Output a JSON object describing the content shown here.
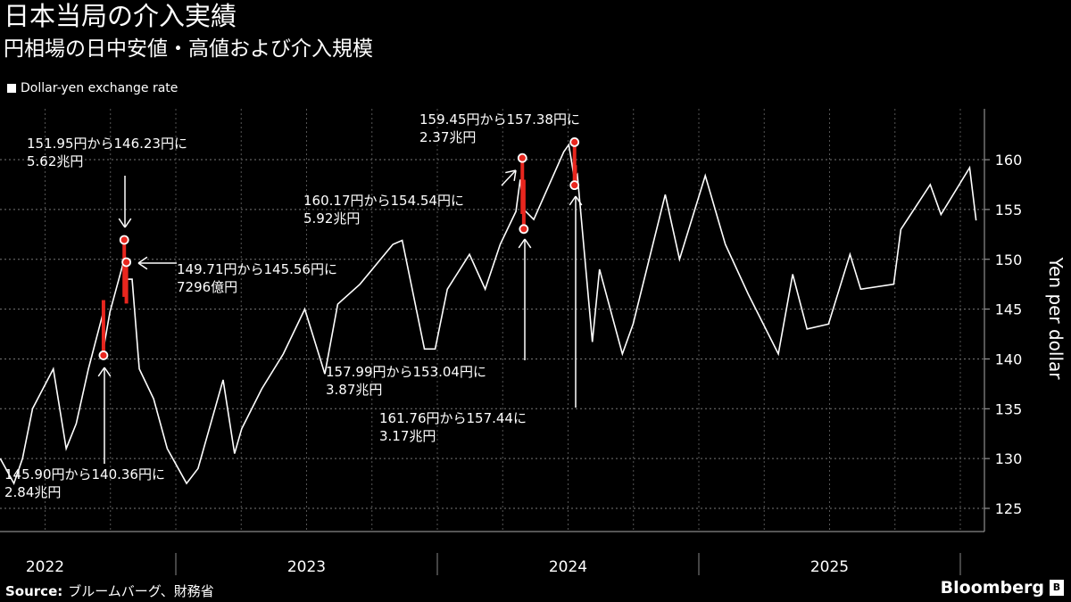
{
  "title": "日本当局の介入実績",
  "subtitle": "円相場の日中安値・高値および介入規模",
  "legend": "Dollar-yen exchange rate",
  "source_label": "Source:",
  "source_text": "ブルームバーグ、財務省",
  "logo": "Bloomberg",
  "colors": {
    "line": "#ffffff",
    "intervention": "#e8261e",
    "background": "#000000"
  },
  "chart_data": {
    "type": "line",
    "title": "日本当局の介入実績",
    "ylabel": "Yen per dollar",
    "ylim": [
      122,
      165
    ],
    "yticks": [
      125,
      130,
      135,
      140,
      145,
      150,
      155,
      160
    ],
    "xticks": [
      "2022",
      "2023",
      "2024",
      "2025"
    ],
    "grid": true,
    "legend_position": "top-left",
    "series": [
      {
        "name": "Dollar-yen exchange rate",
        "points": [
          [
            "2022-05-01",
            130
          ],
          [
            "2022-05-20",
            127.5
          ],
          [
            "2022-06-01",
            130
          ],
          [
            "2022-06-15",
            135
          ],
          [
            "2022-07-14",
            139
          ],
          [
            "2022-08-01",
            131
          ],
          [
            "2022-08-15",
            133.5
          ],
          [
            "2022-09-01",
            139
          ],
          [
            "2022-09-21",
            144.5
          ],
          [
            "2022-09-22",
            141
          ],
          [
            "2022-10-01",
            144.7
          ],
          [
            "2022-10-21",
            150
          ],
          [
            "2022-10-24",
            148
          ],
          [
            "2022-11-01",
            148
          ],
          [
            "2022-11-11",
            139
          ],
          [
            "2022-12-01",
            136
          ],
          [
            "2022-12-20",
            131
          ],
          [
            "2023-01-16",
            127.5
          ],
          [
            "2023-02-01",
            129
          ],
          [
            "2023-03-08",
            137.9
          ],
          [
            "2023-03-24",
            130.5
          ],
          [
            "2023-04-03",
            133
          ],
          [
            "2023-05-01",
            137
          ],
          [
            "2023-05-31",
            140.5
          ],
          [
            "2023-06-30",
            145
          ],
          [
            "2023-07-28",
            138.5
          ],
          [
            "2023-08-15",
            145.5
          ],
          [
            "2023-09-15",
            147.5
          ],
          [
            "2023-10-31",
            151.5
          ],
          [
            "2023-11-13",
            151.9
          ],
          [
            "2023-12-14",
            141
          ],
          [
            "2023-12-29",
            141
          ],
          [
            "2024-01-15",
            147
          ],
          [
            "2024-02-15",
            150.5
          ],
          [
            "2024-03-08",
            147
          ],
          [
            "2024-03-29",
            151.5
          ],
          [
            "2024-04-20",
            154.8
          ],
          [
            "2024-04-26",
            158
          ],
          [
            "2024-05-01",
            155
          ],
          [
            "2024-05-15",
            154
          ],
          [
            "2024-06-26",
            160.8
          ],
          [
            "2024-07-03",
            161.5
          ],
          [
            "2024-07-11",
            158
          ],
          [
            "2024-07-15",
            158.5
          ],
          [
            "2024-08-05",
            141.7
          ],
          [
            "2024-08-15",
            149
          ],
          [
            "2024-09-16",
            140.5
          ],
          [
            "2024-10-01",
            143.5
          ],
          [
            "2024-11-15",
            156.5
          ],
          [
            "2024-12-05",
            150
          ],
          [
            "2025-01-10",
            158.4
          ],
          [
            "2025-02-07",
            151.5
          ],
          [
            "2025-03-11",
            146.5
          ],
          [
            "2025-04-22",
            140.5
          ],
          [
            "2025-05-12",
            148.5
          ],
          [
            "2025-06-01",
            143
          ],
          [
            "2025-07-01",
            143.5
          ],
          [
            "2025-07-31",
            150.5
          ],
          [
            "2025-08-15",
            147
          ],
          [
            "2025-09-30",
            147.5
          ],
          [
            "2025-10-10",
            153
          ],
          [
            "2025-11-20",
            157.5
          ],
          [
            "2025-12-05",
            154.5
          ],
          [
            "2026-01-14",
            159.2
          ],
          [
            "2026-01-23",
            153.9
          ]
        ]
      }
    ],
    "interventions": [
      {
        "date": "2022-09-22",
        "from": 145.9,
        "to": 140.36,
        "label": "145.90円から140.36円に",
        "amount": "2.84兆円"
      },
      {
        "date": "2022-10-21",
        "from": 151.95,
        "to": 146.23,
        "label": "151.95円から146.23円に",
        "amount": "5.62兆円"
      },
      {
        "date": "2022-10-24",
        "from": 149.71,
        "to": 145.56,
        "label": "149.71円から145.56円に",
        "amount": "7296億円"
      },
      {
        "date": "2024-04-29",
        "from": 160.17,
        "to": 154.54,
        "label": "160.17円から154.54円に",
        "amount": "5.92兆円"
      },
      {
        "date": "2024-05-01",
        "from": 157.99,
        "to": 153.04,
        "label": "157.99円から153.04円に",
        "amount": "3.87兆円"
      },
      {
        "date": "2024-07-11",
        "from": 161.76,
        "to": 157.44,
        "label": "161.76円から157.44に",
        "amount": "3.17兆円"
      },
      {
        "date": "2024-07-12",
        "from": 159.45,
        "to": 157.38,
        "label": "159.45円から157.38円に",
        "amount": "2.37兆円"
      }
    ]
  }
}
